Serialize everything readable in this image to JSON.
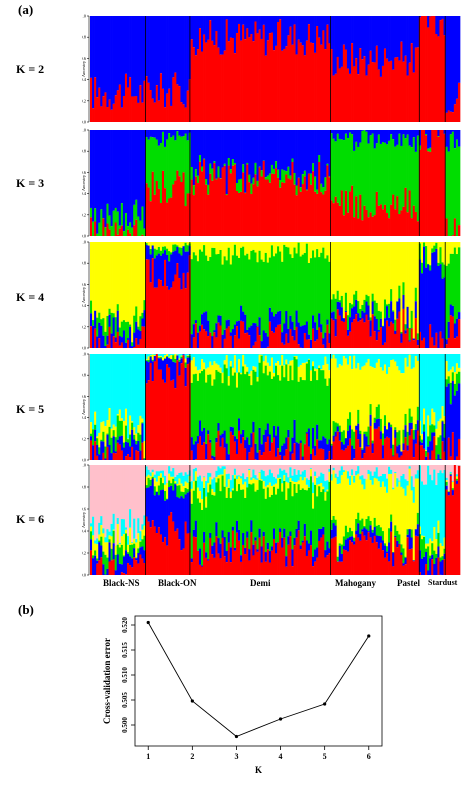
{
  "panel_a": {
    "label": "(a)"
  },
  "panel_b": {
    "label": "(b)"
  },
  "colors": {
    "red": "#ff0000",
    "blue": "#0000ff",
    "green": "#00dd00",
    "yellow": "#ffff00",
    "cyan": "#00ffff",
    "pink": "#ffc0cb"
  },
  "chart_data": [
    {
      "type": "bar",
      "subtype": "stacked-admixture",
      "ylabel": "Ancestry",
      "yticks": [
        "0.0",
        "0.2",
        "0.4",
        "0.6",
        "0.8",
        "1.0"
      ],
      "populations": [
        "Black-NS",
        "Black-ON",
        "Demi",
        "Mahogany",
        "Pastel",
        "Stardust"
      ],
      "population_bounds": [
        0,
        0.15,
        0.27,
        0.65,
        0.89,
        0.96,
        1.0
      ],
      "panels": [
        {
          "k_label": "K = 2",
          "colors": [
            "red",
            "blue"
          ],
          "approx_first_cluster_proportion_by_population": [
            0.28,
            0.3,
            0.8,
            0.6,
            0.98,
            0.25
          ]
        },
        {
          "k_label": "K = 3",
          "colors": [
            "red",
            "green",
            "blue"
          ],
          "approx_first_cluster_proportion_by_population": [
            0.03,
            0.45,
            0.55,
            0.3,
            0.95,
            0.05
          ]
        },
        {
          "k_label": "K = 4",
          "colors": [
            "red",
            "blue",
            "green",
            "yellow"
          ],
          "approx_first_cluster_proportion_by_population": [
            0.05,
            0.7,
            0.1,
            0.2,
            0.05,
            0.2
          ]
        },
        {
          "k_label": "K = 5",
          "colors": [
            "red",
            "blue",
            "green",
            "yellow",
            "cyan"
          ],
          "approx_first_cluster_proportion_by_population": [
            0.02,
            0.85,
            0.1,
            0.15,
            0.05,
            0.1
          ]
        },
        {
          "k_label": "K = 6",
          "colors": [
            "red",
            "blue",
            "green",
            "yellow",
            "cyan",
            "pink"
          ],
          "approx_first_cluster_proportion_by_population": [
            0.05,
            0.4,
            0.25,
            0.25,
            0.05,
            0.85
          ]
        }
      ]
    },
    {
      "type": "line",
      "xlabel": "K",
      "ylabel": "Cross-validation error",
      "x": [
        1,
        2,
        3,
        4,
        5,
        6
      ],
      "y": [
        0.5205,
        0.5048,
        0.4977,
        0.5012,
        0.5042,
        0.5178
      ],
      "xlim": [
        0.7,
        6.3
      ],
      "ylim": [
        0.4958,
        0.5218
      ],
      "yticks": [
        "0.500",
        "0.505",
        "0.510",
        "0.515",
        "0.520"
      ],
      "xticks": [
        "1",
        "2",
        "3",
        "4",
        "5",
        "6"
      ]
    }
  ]
}
